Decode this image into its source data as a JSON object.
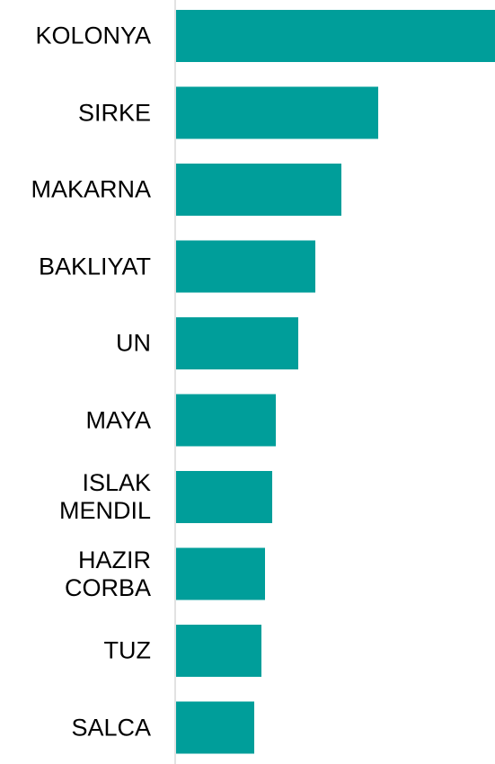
{
  "chart_data": {
    "type": "bar",
    "orientation": "horizontal",
    "categories": [
      "KOLONYA",
      "SIRKE",
      "MAKARNA",
      "BAKLIYAT",
      "UN",
      "MAYA",
      "ISLAK MENDIL",
      "HAZIR CORBA",
      "TUZ",
      "SALCA"
    ],
    "values": [
      355,
      225,
      184,
      155,
      136,
      111,
      107,
      99,
      95,
      87
    ],
    "color": "#009e9a",
    "xlim": [
      0,
      355
    ]
  }
}
